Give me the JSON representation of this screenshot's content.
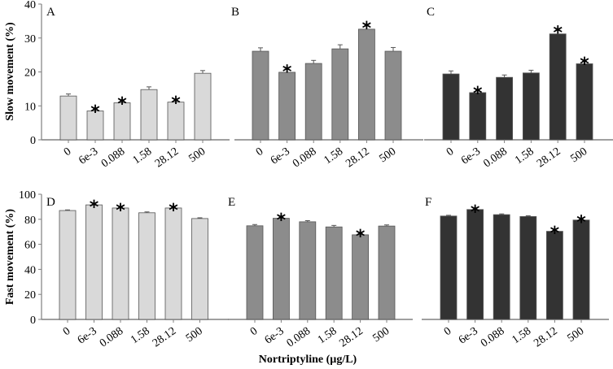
{
  "figure": {
    "xlabel": "Nortriptyline (µg/L)",
    "rows": [
      {
        "ylabel": "Slow movement (%)",
        "yticks": [
          "0",
          "10",
          "20",
          "30",
          "40"
        ],
        "ylim": [
          0,
          40
        ]
      },
      {
        "ylabel": "Fast movement (%)",
        "yticks": [
          "0",
          "20",
          "40",
          "60",
          "80",
          "100"
        ],
        "ylim": [
          0,
          100
        ]
      }
    ]
  },
  "colors": {
    "light": "#d9d9d9",
    "medium": "#8c8c8c",
    "dark": "#333333",
    "axis": "#808080",
    "edge": "#555555"
  },
  "chart_data": [
    {
      "type": "bar",
      "panel": "A",
      "row": 0,
      "color": "#d9d9d9",
      "categories": [
        "0",
        "6e-3",
        "0.088",
        "1.58",
        "28.12",
        "500"
      ],
      "values": [
        12.9,
        8.5,
        10.9,
        14.8,
        11.1,
        19.6
      ],
      "errors": [
        0.6,
        0.6,
        0.6,
        0.8,
        0.6,
        0.8
      ],
      "significant": [
        false,
        true,
        true,
        false,
        true,
        false
      ],
      "ylabel": "Slow movement (%)",
      "ylim": [
        0,
        40
      ]
    },
    {
      "type": "bar",
      "panel": "B",
      "row": 0,
      "color": "#8c8c8c",
      "categories": [
        "0",
        "6e-3",
        "0.088",
        "1.58",
        "28.12",
        "500"
      ],
      "values": [
        26.1,
        19.9,
        22.5,
        26.8,
        32.6,
        26.1
      ],
      "errors": [
        1.0,
        1.0,
        0.9,
        1.2,
        1.2,
        1.1
      ],
      "significant": [
        false,
        true,
        false,
        false,
        true,
        false
      ],
      "ylabel": "Slow movement (%)",
      "ylim": [
        0,
        40
      ]
    },
    {
      "type": "bar",
      "panel": "C",
      "row": 0,
      "color": "#333333",
      "categories": [
        "0",
        "6e-3",
        "0.088",
        "1.58",
        "28.12",
        "500"
      ],
      "values": [
        19.4,
        13.9,
        18.4,
        19.7,
        31.2,
        22.4
      ],
      "errors": [
        0.9,
        0.7,
        0.7,
        0.8,
        1.2,
        0.8
      ],
      "significant": [
        false,
        true,
        false,
        false,
        true,
        true
      ],
      "ylabel": "Slow movement (%)",
      "ylim": [
        0,
        40
      ]
    },
    {
      "type": "bar",
      "panel": "D",
      "row": 1,
      "color": "#d9d9d9",
      "categories": [
        "0",
        "6e-3",
        "0.088",
        "1.58",
        "28.12",
        "500"
      ],
      "values": [
        87.0,
        91.5,
        89.0,
        85.2,
        89.0,
        80.6
      ],
      "errors": [
        0.5,
        0.6,
        0.6,
        0.7,
        0.6,
        0.6
      ],
      "significant": [
        false,
        true,
        true,
        false,
        true,
        false
      ],
      "ylabel": "Fast movement (%)",
      "ylim": [
        0,
        100
      ]
    },
    {
      "type": "bar",
      "panel": "E",
      "row": 1,
      "color": "#8c8c8c",
      "categories": [
        "0",
        "6e-3",
        "0.088",
        "1.58",
        "28.12",
        "500"
      ],
      "values": [
        74.8,
        80.8,
        78.0,
        73.9,
        67.6,
        74.6
      ],
      "errors": [
        1.0,
        1.0,
        0.9,
        1.2,
        1.2,
        0.9
      ],
      "significant": [
        false,
        true,
        false,
        false,
        true,
        false
      ],
      "ylabel": "Fast movement (%)",
      "ylim": [
        0,
        100
      ]
    },
    {
      "type": "bar",
      "panel": "F",
      "row": 1,
      "color": "#333333",
      "categories": [
        "0",
        "6e-3",
        "0.088",
        "1.58",
        "28.12",
        "500"
      ],
      "values": [
        82.6,
        87.8,
        83.7,
        82.2,
        70.4,
        79.4
      ],
      "errors": [
        0.6,
        0.6,
        0.6,
        0.6,
        0.9,
        0.7
      ],
      "significant": [
        false,
        true,
        false,
        false,
        true,
        true
      ],
      "ylabel": "Fast movement (%)",
      "ylim": [
        0,
        100
      ]
    }
  ],
  "significance_marker": "*"
}
